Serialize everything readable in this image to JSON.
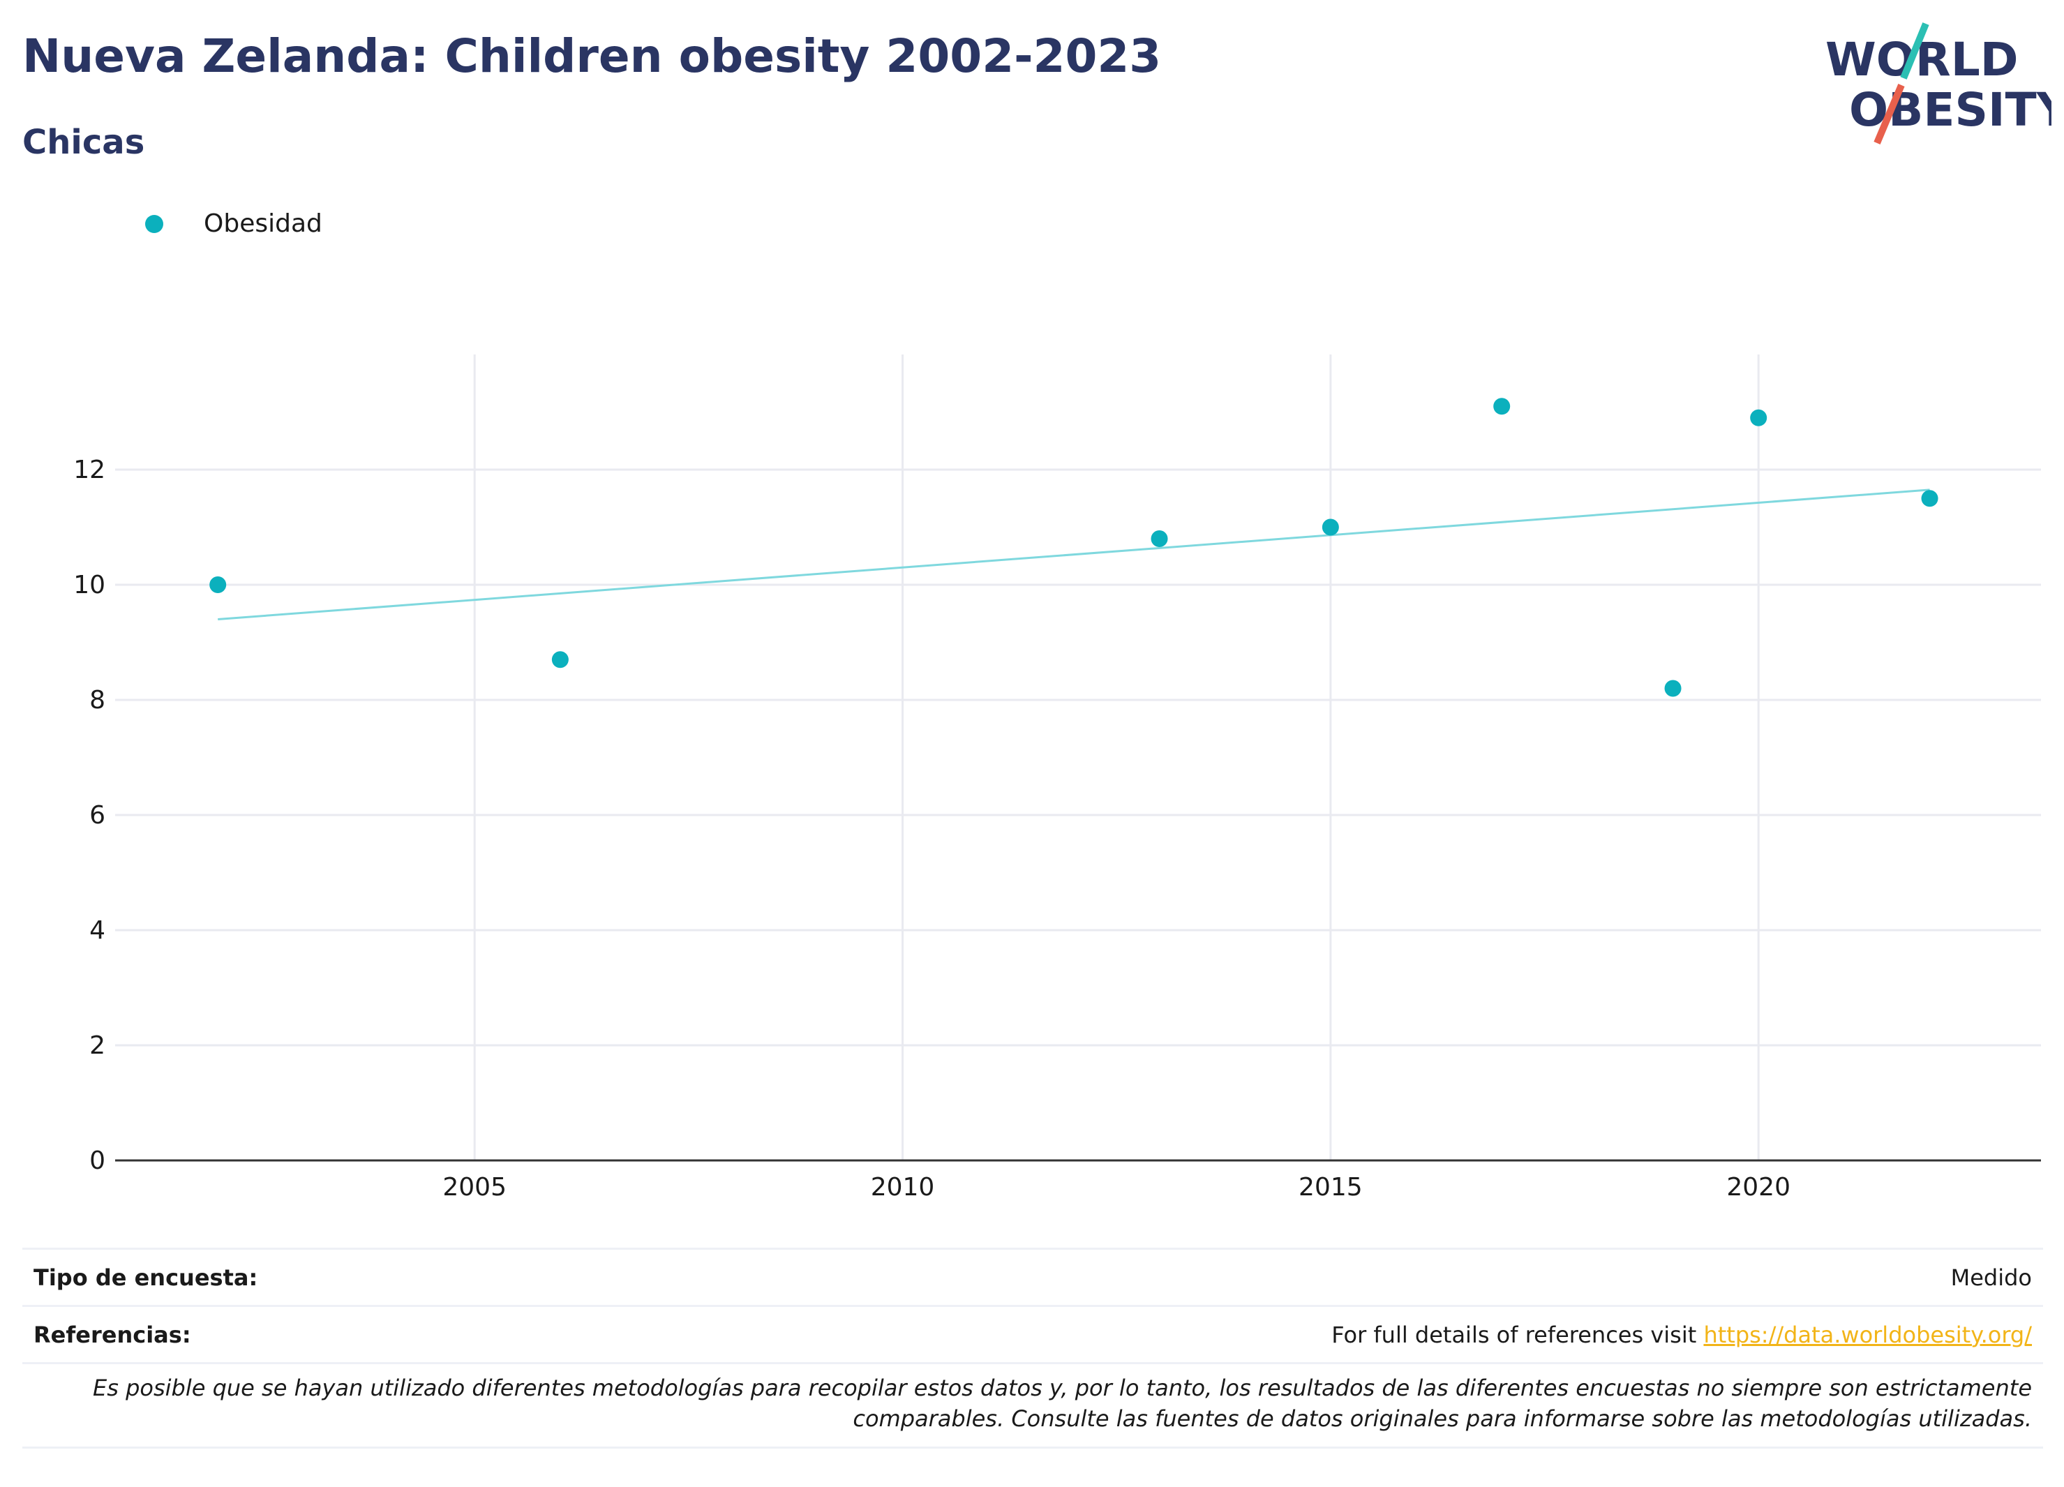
{
  "header": {
    "title": "Nueva Zelanda: Children obesity 2002-2023",
    "subtitle": "Chicas"
  },
  "logo": {
    "line1": "WORLD",
    "line2": "OBESITY",
    "accent_teal": "#2bbfb3",
    "accent_red": "#e8604c",
    "text_color": "#2a3563"
  },
  "legend": {
    "label": "Obesidad",
    "color": "#0bb0bd"
  },
  "chart_data": {
    "type": "scatter",
    "series": [
      {
        "name": "Obesidad",
        "color": "#0bb0bd",
        "points": [
          {
            "x": 2002,
            "y": 10.0
          },
          {
            "x": 2006,
            "y": 8.7
          },
          {
            "x": 2013,
            "y": 10.8
          },
          {
            "x": 2015,
            "y": 11.0
          },
          {
            "x": 2017,
            "y": 13.1
          },
          {
            "x": 2019,
            "y": 8.2
          },
          {
            "x": 2020,
            "y": 12.9
          },
          {
            "x": 2022,
            "y": 11.5
          }
        ]
      }
    ],
    "trendline": {
      "color": "#7fd8de",
      "points": [
        {
          "x": 2002,
          "y": 9.4
        },
        {
          "x": 2022,
          "y": 11.65
        }
      ]
    },
    "xlim": [
      2000.8,
      2023.3
    ],
    "ylim": [
      0,
      14
    ],
    "xticks": [
      2005,
      2010,
      2015,
      2020
    ],
    "yticks": [
      0,
      2,
      4,
      6,
      8,
      10,
      12
    ],
    "grid": true,
    "legend_position": "top-left",
    "xlabel": "",
    "ylabel": ""
  },
  "info": {
    "survey_label": "Tipo de encuesta:",
    "survey_value": "Medido",
    "references_label": "Referencias:",
    "references_text": "For full details of references visit ",
    "references_link": "https://data.worldobesity.org/",
    "note_line1": "Es posible que se hayan utilizado diferentes metodologías para recopilar estos datos y, por lo tanto, los resultados de las diferentes encuestas no siempre son estrictamente",
    "note_line2": "comparables. Consulte las fuentes de datos originales para informarse sobre las metodologías utilizadas."
  }
}
